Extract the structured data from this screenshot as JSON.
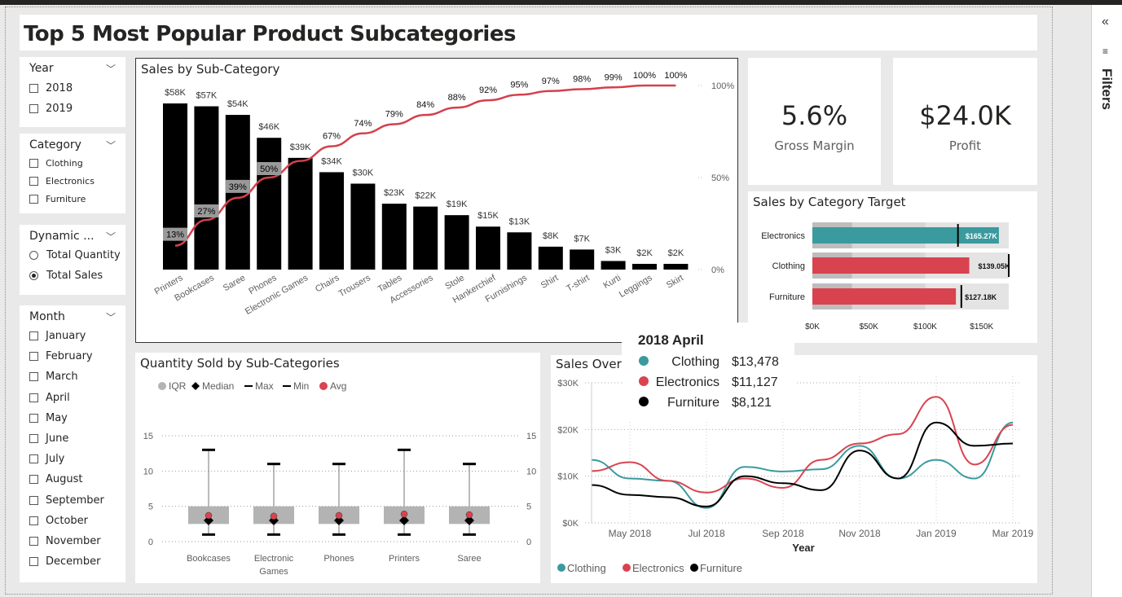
{
  "report": {
    "title": "Top 5 Most Popular Product Subcategories"
  },
  "filters_pane": {
    "label": "Filters",
    "collapse_icon": "double-chevron-left-icon"
  },
  "slicers": {
    "year": {
      "title": "Year",
      "options": [
        "2018",
        "2019"
      ]
    },
    "category": {
      "title": "Category",
      "options": [
        "Clothing",
        "Electronics",
        "Furniture"
      ]
    },
    "dynamic": {
      "title": "Dynamic ...",
      "options": [
        "Total Quantity",
        "Total Sales"
      ],
      "selected": "Total Sales"
    },
    "month": {
      "title": "Month",
      "options": [
        "January",
        "February",
        "March",
        "April",
        "May",
        "June",
        "July",
        "August",
        "September",
        "October",
        "November",
        "December"
      ]
    }
  },
  "kpis": {
    "gross_margin": {
      "value": "5.6%",
      "label": "Gross Margin"
    },
    "profit": {
      "value": "$24.0K",
      "label": "Profit"
    }
  },
  "colors": {
    "clothing": "#3a9a9e",
    "electronics": "#d9434f",
    "furniture": "#000000",
    "pareto": "#d4404c",
    "band_dark": "#bdbdbd",
    "band_light": "#e4e4e4",
    "iqr": "#b3b3b3"
  },
  "pareto_chart": {
    "title": "Sales by Sub-Category",
    "chart_data": {
      "type": "bar",
      "categories": [
        "Printers",
        "Bookcases",
        "Saree",
        "Phones",
        "Electronic Games",
        "Chairs",
        "Trousers",
        "Tables",
        "Accessories",
        "Stole",
        "Hankerchief",
        "Furnishings",
        "Shirt",
        "T-shirt",
        "Kurti",
        "Leggings",
        "Skirt"
      ],
      "values": [
        58,
        57,
        54,
        46,
        39,
        34,
        30,
        23,
        22,
        19,
        15,
        13,
        8,
        7,
        3,
        2,
        2
      ],
      "value_labels": [
        "$58K",
        "$57K",
        "$54K",
        "$46K",
        "$39K",
        "$34K",
        "$30K",
        "$23K",
        "$22K",
        "$19K",
        "$15K",
        "$13K",
        "$8K",
        "$7K",
        "$3K",
        "$2K",
        "$2K"
      ],
      "cumulative_pct": [
        13,
        27,
        39,
        50,
        59,
        67,
        74,
        79,
        84,
        88,
        92,
        95,
        97,
        98,
        99,
        100,
        100
      ],
      "cumulative_labels": [
        "13%",
        "27%",
        "39%",
        "50%",
        "",
        "67%",
        "74%",
        "79%",
        "84%",
        "88%",
        "92%",
        "95%",
        "97%",
        "98%",
        "99%",
        "100%",
        "100%"
      ],
      "ylim": [
        0,
        58
      ],
      "y2_ticks": [
        "0%",
        "50%",
        "100%"
      ],
      "y2lim": [
        0,
        100
      ]
    }
  },
  "bullet_chart": {
    "title": "Sales by Category Target",
    "chart_data": {
      "type": "bar",
      "categories": [
        "Electronics",
        "Clothing",
        "Furniture"
      ],
      "values": [
        165.27,
        139.05,
        127.18
      ],
      "value_labels": [
        "$165.27K",
        "$139.05K",
        "$127.18K"
      ],
      "targets": [
        129,
        174,
        132
      ],
      "bands": [
        [
          35,
          100,
          174
        ],
        [
          35,
          100,
          174
        ],
        [
          35,
          100,
          174
        ]
      ],
      "x_ticks": [
        "$0K",
        "$50K",
        "$100K",
        "$150K"
      ],
      "x_tick_values": [
        0,
        50,
        100,
        150
      ],
      "xlim": [
        0,
        174
      ]
    }
  },
  "box_chart": {
    "title": "Quantity Sold by Sub-Categories",
    "legend": [
      "IQR",
      "Median",
      "Max",
      "Min",
      "Avg"
    ],
    "chart_data": {
      "type": "scatter",
      "categories": [
        "Bookcases",
        "Electronic Games",
        "Phones",
        "Printers",
        "Saree"
      ],
      "category_lines": [
        [
          "Bookcases"
        ],
        [
          "Electronic",
          "Games"
        ],
        [
          "Phones"
        ],
        [
          "Printers"
        ],
        [
          "Saree"
        ]
      ],
      "series": [
        {
          "name": "Max",
          "values": [
            13,
            11,
            11,
            13,
            11
          ]
        },
        {
          "name": "Min",
          "values": [
            1,
            1,
            1,
            1,
            1
          ]
        },
        {
          "name": "Median",
          "values": [
            3,
            3,
            3,
            3,
            3
          ]
        },
        {
          "name": "Avg",
          "values": [
            3.7,
            3.6,
            3.7,
            3.9,
            3.8
          ]
        }
      ],
      "iqr": [
        [
          2.5,
          5
        ],
        [
          2.5,
          5
        ],
        [
          2.5,
          5
        ],
        [
          2.5,
          5
        ],
        [
          2.5,
          5
        ]
      ],
      "y_ticks": [
        0,
        5,
        10,
        15
      ],
      "ylim": [
        0,
        15
      ]
    }
  },
  "line_chart": {
    "title": "Sales Over",
    "chart_data": {
      "type": "line",
      "x": [
        "2018-04",
        "2018-05",
        "2018-06",
        "2018-07",
        "2018-08",
        "2018-09",
        "2018-10",
        "2018-11",
        "2018-12",
        "2019-01",
        "2019-02",
        "2019-03"
      ],
      "x_tick_labels": [
        "May 2018",
        "Jul 2018",
        "Sep 2018",
        "Nov 2018",
        "Jan 2019",
        "Mar 2019"
      ],
      "x_tick_index": [
        1,
        3,
        5,
        7,
        9,
        11
      ],
      "xlabel": "Year",
      "y_ticks": [
        "$0K",
        "$10K",
        "$20K",
        "$30K"
      ],
      "ylim": [
        0,
        30
      ],
      "series": [
        {
          "name": "Clothing",
          "values": [
            13.5,
            9.5,
            9,
            3.2,
            12,
            11,
            11.5,
            16.5,
            9.5,
            13.5,
            9.5,
            21.5
          ]
        },
        {
          "name": "Electronics",
          "values": [
            11.1,
            13,
            9,
            6.5,
            9.5,
            7.5,
            13.5,
            17,
            19,
            27,
            12.5,
            21
          ]
        },
        {
          "name": "Furniture",
          "values": [
            8.1,
            6,
            5.5,
            3.5,
            10,
            8.5,
            7,
            15.5,
            9.5,
            21.5,
            16.5,
            17
          ]
        }
      ]
    }
  },
  "tooltip": {
    "title": "2018 April",
    "rows": [
      {
        "name": "Clothing",
        "value": "$13,478"
      },
      {
        "name": "Electronics",
        "value": "$11,127"
      },
      {
        "name": "Furniture",
        "value": "$8,121"
      }
    ]
  }
}
